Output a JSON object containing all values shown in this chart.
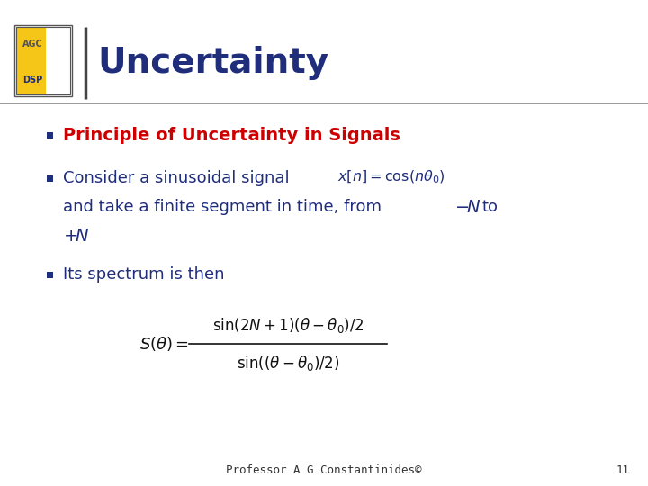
{
  "title": "Uncertainty",
  "title_color": "#1F2D7B",
  "background_color": "#FFFFFF",
  "bullet_color": "#1F2D7B",
  "bullet1_text": "Principle of Uncertainty in Signals",
  "bullet1_color": "#CC0000",
  "bullet3_text": "Its spectrum is then",
  "footer_text": "Professor A G Constantinides©",
  "footer_number": "11",
  "logo_text1": "AGC",
  "logo_text2": "DSP",
  "divider_color": "#444444",
  "header_line_color": "#888888"
}
